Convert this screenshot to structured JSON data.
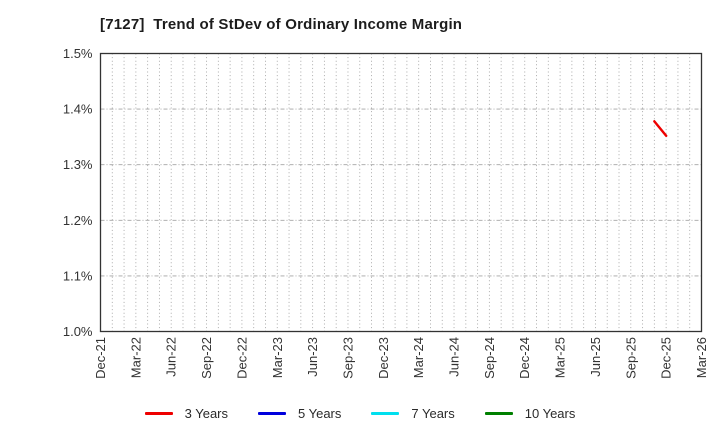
{
  "title": "[7127]  Trend of StDev of Ordinary Income Margin",
  "chart_data": {
    "type": "line",
    "title": "[7127]  Trend of StDev of Ordinary Income Margin",
    "xlabel": "",
    "ylabel": "",
    "ylim": [
      1.0,
      1.5
    ],
    "y_ticks": [
      {
        "label": "1.0%",
        "value": 1.0
      },
      {
        "label": "1.1%",
        "value": 1.1
      },
      {
        "label": "1.2%",
        "value": 1.2
      },
      {
        "label": "1.3%",
        "value": 1.3
      },
      {
        "label": "1.4%",
        "value": 1.4
      },
      {
        "label": "1.5%",
        "value": 1.5
      }
    ],
    "x_range": {
      "start": "Dec-21",
      "end": "Mar-26",
      "unit": "month"
    },
    "x_tick_labels": [
      "Dec-21",
      "Mar-22",
      "Jun-22",
      "Sep-22",
      "Dec-22",
      "Mar-23",
      "Jun-23",
      "Sep-23",
      "Dec-23",
      "Mar-24",
      "Jun-24",
      "Sep-24",
      "Dec-24",
      "Mar-25",
      "Jun-25",
      "Sep-25",
      "Dec-25",
      "Mar-26"
    ],
    "grid": {
      "vertical": "monthly dotted",
      "horizontal": "dashed at each 0.1% tick",
      "on": true
    },
    "legend_position": "bottom-center",
    "series": [
      {
        "name": "3 Years",
        "color": "#ee0000",
        "points": [
          {
            "date": "Nov-25",
            "value": 1.378
          },
          {
            "date": "Dec-25",
            "value": 1.352
          }
        ]
      },
      {
        "name": "5 Years",
        "color": "#0000dd",
        "points": []
      },
      {
        "name": "7 Years",
        "color": "#00dfee",
        "points": []
      },
      {
        "name": "10 Years",
        "color": "#008000",
        "points": []
      }
    ]
  },
  "legend": {
    "items": [
      {
        "label": "3 Years",
        "color": "#ee0000"
      },
      {
        "label": "5 Years",
        "color": "#0000dd"
      },
      {
        "label": "7 Years",
        "color": "#00dfee"
      },
      {
        "label": "10 Years",
        "color": "#008000"
      }
    ]
  },
  "colors": {
    "spine": "#333333",
    "grid": "#a3a3a3",
    "tick_label": "#333333",
    "title_text": "#1c1c1c",
    "background": "#ffffff"
  }
}
